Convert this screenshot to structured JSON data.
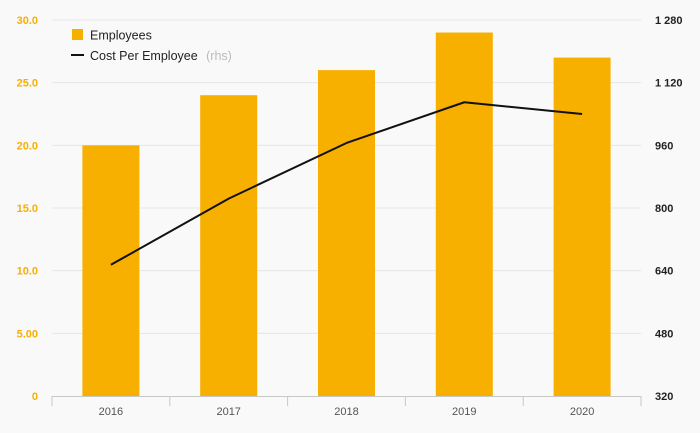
{
  "chart_data": {
    "type": "bar",
    "categories": [
      "2016",
      "2017",
      "2018",
      "2019",
      "2020"
    ],
    "series": [
      {
        "name": "Employees",
        "type": "bar",
        "axis": "left",
        "color": "#f8b000",
        "values": [
          20.0,
          24.0,
          26.0,
          29.0,
          27.0
        ]
      },
      {
        "name": "Cost Per Employee",
        "name_suffix": "(rhs)",
        "type": "line",
        "axis": "right",
        "color": "#111111",
        "values": [
          655,
          824,
          966,
          1070,
          1040
        ]
      }
    ],
    "y_left": {
      "range": [
        0,
        30
      ],
      "ticks": [
        0,
        5,
        10,
        15,
        20,
        25,
        30
      ],
      "tick_labels": [
        "0",
        "5.00",
        "10.0",
        "15.0",
        "20.0",
        "25.0",
        "30.0"
      ],
      "color": "#f8b000"
    },
    "y_right": {
      "range": [
        320,
        1280
      ],
      "ticks": [
        320,
        480,
        640,
        800,
        960,
        1120,
        1280
      ],
      "tick_labels": [
        "320",
        "480",
        "640",
        "800",
        "960",
        "1 120",
        "1 280"
      ]
    },
    "grid": true,
    "legend_position": "top-left"
  }
}
